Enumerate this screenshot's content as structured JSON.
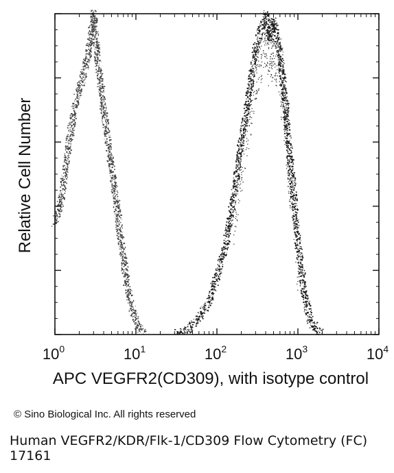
{
  "chart_data": {
    "type": "histogram",
    "xlabel": "APC VEGFR2(CD309), with isotype control",
    "ylabel": "Relative Cell Number",
    "x_scale": "log",
    "xlim": [
      1,
      10000
    ],
    "ylim": [
      0,
      100
    ],
    "x_ticks": [
      {
        "base": "10",
        "exp": "0",
        "value": 1
      },
      {
        "base": "10",
        "exp": "1",
        "value": 10
      },
      {
        "base": "10",
        "exp": "2",
        "value": 100
      },
      {
        "base": "10",
        "exp": "3",
        "value": 1000
      },
      {
        "base": "10",
        "exp": "4",
        "value": 10000
      }
    ],
    "grid": false,
    "series": [
      {
        "points": [
          [
            1.0,
            35
          ],
          [
            1.2,
            42
          ],
          [
            1.5,
            60
          ],
          [
            1.8,
            72
          ],
          [
            2.2,
            80
          ],
          [
            2.6,
            88
          ],
          [
            3.0,
            100
          ],
          [
            3.4,
            85
          ],
          [
            3.8,
            75
          ],
          [
            4.5,
            60
          ],
          [
            5.5,
            45
          ],
          [
            6.5,
            30
          ],
          [
            7.5,
            18
          ],
          [
            9.0,
            8
          ],
          [
            11,
            2
          ],
          [
            13,
            0
          ]
        ]
      },
      {
        "points": [
          [
            30,
            0
          ],
          [
            45,
            2
          ],
          [
            60,
            5
          ],
          [
            80,
            10
          ],
          [
            100,
            18
          ],
          [
            130,
            28
          ],
          [
            160,
            42
          ],
          [
            200,
            60
          ],
          [
            250,
            75
          ],
          [
            300,
            88
          ],
          [
            350,
            95
          ],
          [
            400,
            100
          ],
          [
            450,
            92
          ],
          [
            500,
            98
          ],
          [
            600,
            88
          ],
          [
            700,
            72
          ],
          [
            800,
            55
          ],
          [
            1000,
            30
          ],
          [
            1200,
            12
          ],
          [
            1500,
            3
          ],
          [
            2000,
            0
          ]
        ]
      }
    ]
  },
  "footer": {
    "copyright": "© Sino Biological Inc. All rights reserved",
    "caption_line1": "Human VEGFR2/KDR/Flk-1/CD309 Flow Cytometry (FC)",
    "caption_line2": "17161"
  }
}
